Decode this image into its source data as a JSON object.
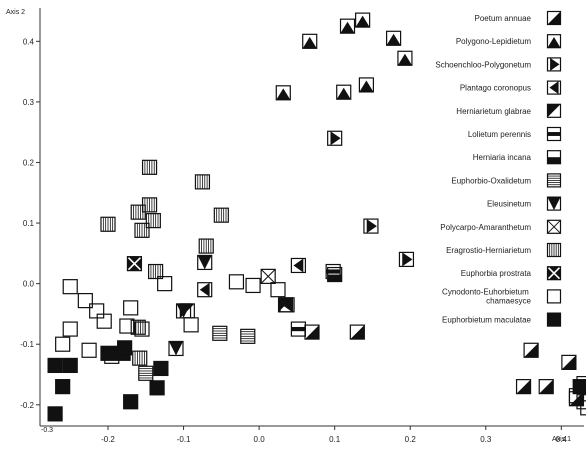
{
  "chart_data": {
    "type": "scatter",
    "xlabel": "Axis 1",
    "ylabel": "Axis 2",
    "x_ticks": [
      "-0.2",
      "-0.1",
      "0.0",
      "0.1",
      "0.2",
      "0.3",
      "0.4"
    ],
    "y_ticks": [
      "0.4",
      "0.3",
      "0.2",
      "0.1",
      "0.0",
      "-0.1",
      "-0.2"
    ],
    "origin_label": "-0.3",
    "xlim": [
      -0.29,
      0.43
    ],
    "ylim": [
      -0.235,
      0.455
    ],
    "grid": false,
    "legend_position": "right",
    "series": [
      {
        "name": "Poetum annuae",
        "glyph": "diag-br",
        "points": [
          [
            0.07,
            -0.08
          ],
          [
            0.13,
            -0.08
          ],
          [
            0.36,
            -0.11
          ],
          [
            0.38,
            -0.17
          ],
          [
            0.42,
            -0.19
          ],
          [
            0.41,
            -0.13
          ],
          [
            0.35,
            -0.17
          ]
        ]
      },
      {
        "name": "Polygono-Lepidietum",
        "glyph": "mountain",
        "points": [
          [
            0.137,
            0.435
          ],
          [
            0.117,
            0.425
          ],
          [
            0.178,
            0.405
          ],
          [
            0.067,
            0.4
          ],
          [
            0.193,
            0.372
          ],
          [
            0.142,
            0.328
          ],
          [
            0.112,
            0.316
          ],
          [
            0.032,
            0.315
          ]
        ]
      },
      {
        "name": "Schoenchloo-Polygonetum",
        "glyph": "tri-right",
        "points": [
          [
            0.1,
            0.24
          ],
          [
            0.148,
            0.095
          ],
          [
            0.195,
            0.04
          ]
        ]
      },
      {
        "name": "Plantago coronopus",
        "glyph": "tri-left",
        "points": [
          [
            -0.072,
            -0.01
          ],
          [
            0.037,
            -0.035
          ],
          [
            0.052,
            0.03
          ]
        ]
      },
      {
        "name": "Herniarietum glabrae",
        "glyph": "diag-tl",
        "points": [
          [
            -0.095,
            -0.045
          ],
          [
            0.035,
            -0.035
          ]
        ]
      },
      {
        "name": "Lolietum perennis",
        "glyph": "bar-mid",
        "points": [
          [
            0.052,
            -0.075
          ],
          [
            0.098,
            0.02
          ]
        ]
      },
      {
        "name": "Herniaria incana",
        "glyph": "bottom-half",
        "points": [
          [
            0.1,
            0.015
          ]
        ]
      },
      {
        "name": "Euphorbio-Oxalidetum",
        "glyph": "hlines",
        "points": [
          [
            -0.052,
            -0.082
          ],
          [
            -0.015,
            -0.087
          ],
          [
            -0.15,
            -0.148
          ]
        ]
      },
      {
        "name": "Eleusinetum",
        "glyph": "vtri",
        "points": [
          [
            -0.072,
            0.035
          ],
          [
            -0.1,
            -0.045
          ],
          [
            -0.11,
            -0.107
          ]
        ]
      },
      {
        "name": "Polycarpo-Amaranthetum",
        "glyph": "xbox",
        "points": [
          [
            0.012,
            0.012
          ]
        ]
      },
      {
        "name": "Eragrostio-Herniarietum",
        "glyph": "vlines",
        "points": [
          [
            -0.145,
            0.192
          ],
          [
            -0.075,
            0.168
          ],
          [
            -0.05,
            0.113
          ],
          [
            -0.2,
            0.098
          ],
          [
            -0.16,
            0.118
          ],
          [
            -0.14,
            0.104
          ],
          [
            -0.155,
            0.088
          ],
          [
            -0.07,
            0.062
          ],
          [
            -0.137,
            0.02
          ],
          [
            -0.145,
            0.13
          ],
          [
            -0.16,
            -0.072
          ],
          [
            -0.158,
            -0.123
          ]
        ]
      },
      {
        "name": "Euphorbia prostrata",
        "glyph": "xfill",
        "points": [
          [
            -0.165,
            0.033
          ]
        ]
      },
      {
        "name": "Cynodonto-Euhorbietum chamaesyce",
        "glyph": "open",
        "points": [
          [
            -0.25,
            -0.005
          ],
          [
            -0.23,
            -0.028
          ],
          [
            -0.215,
            -0.045
          ],
          [
            -0.205,
            -0.062
          ],
          [
            -0.175,
            -0.07
          ],
          [
            -0.26,
            -0.1
          ],
          [
            -0.25,
            -0.075
          ],
          [
            -0.225,
            -0.11
          ],
          [
            -0.195,
            -0.12
          ],
          [
            -0.155,
            -0.075
          ],
          [
            -0.17,
            -0.04
          ],
          [
            -0.09,
            -0.068
          ],
          [
            -0.008,
            -0.003
          ],
          [
            0.025,
            -0.01
          ],
          [
            -0.03,
            0.003
          ],
          [
            -0.125,
            0.0
          ],
          [
            0.43,
            -0.195
          ],
          [
            0.43,
            -0.165
          ],
          [
            0.435,
            -0.205
          ],
          [
            0.42,
            -0.185
          ]
        ]
      },
      {
        "name": "Euphorbietum maculatae",
        "glyph": "filled",
        "points": [
          [
            -0.27,
            -0.135
          ],
          [
            -0.25,
            -0.135
          ],
          [
            -0.26,
            -0.17
          ],
          [
            -0.27,
            -0.215
          ],
          [
            -0.2,
            -0.115
          ],
          [
            -0.18,
            -0.115
          ],
          [
            -0.17,
            -0.195
          ],
          [
            -0.135,
            -0.172
          ],
          [
            -0.178,
            -0.106
          ],
          [
            -0.13,
            -0.14
          ],
          [
            0.425,
            -0.17
          ]
        ]
      }
    ]
  }
}
